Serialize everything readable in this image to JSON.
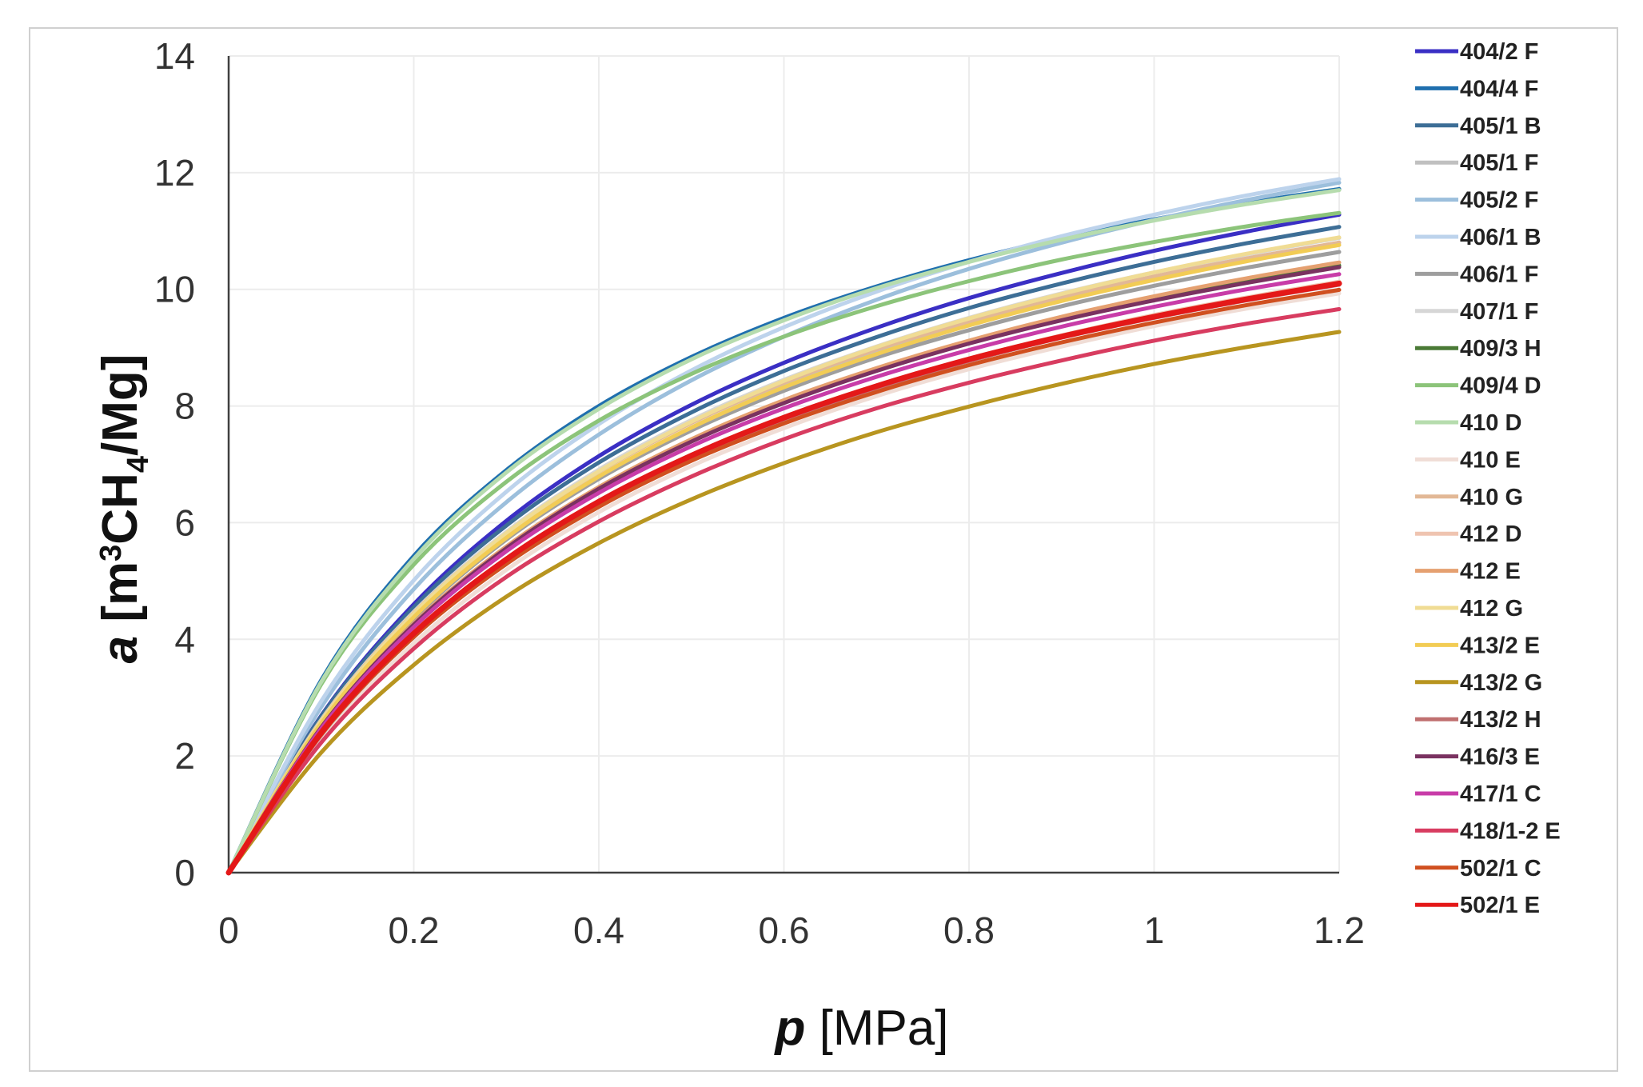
{
  "chart_data": {
    "type": "line",
    "title": "",
    "xlabel_italic": "p",
    "xlabel_rest": " [MPa]",
    "ylabel_italic": "a",
    "ylabel_pre": " [m",
    "ylabel_sup": "3",
    "ylabel_mid": "CH",
    "ylabel_sub": "4",
    "ylabel_post": "/Mg]",
    "xlim": [
      0,
      1.2
    ],
    "ylim": [
      0,
      14
    ],
    "xticks": [
      0,
      0.2,
      0.4,
      0.6,
      0.8,
      1,
      1.2
    ],
    "yticks": [
      0,
      2,
      4,
      6,
      8,
      10,
      12,
      14
    ],
    "grid": true,
    "legend_position": "right",
    "x": [
      0,
      0.1,
      0.2,
      0.3,
      0.4,
      0.5,
      0.6,
      0.7,
      0.8,
      0.9,
      1.0,
      1.1,
      1.2
    ],
    "series": [
      {
        "name": "404/2 F",
        "color": "#3a2fc4",
        "values": [
          0,
          2.69,
          4.6,
          6.03,
          7.14,
          8.02,
          8.74,
          9.34,
          9.85,
          10.28,
          10.66,
          10.99,
          11.28
        ]
      },
      {
        "name": "404/4 F",
        "color": "#1f6fae",
        "values": [
          0,
          3.3,
          5.43,
          6.9,
          8.0,
          8.84,
          9.51,
          10.05,
          10.5,
          10.88,
          11.2,
          11.48,
          11.72
        ]
      },
      {
        "name": "405/1 B",
        "color": "#3d6e96",
        "values": [
          0,
          2.68,
          4.55,
          5.95,
          7.03,
          7.89,
          8.6,
          9.18,
          9.68,
          10.1,
          10.47,
          10.79,
          11.07
        ]
      },
      {
        "name": "405/1 F",
        "color": "#c0c0c0",
        "values": [
          0,
          2.54,
          4.35,
          5.72,
          6.78,
          7.63,
          8.33,
          8.91,
          9.4,
          9.82,
          10.19,
          10.51,
          10.8
        ]
      },
      {
        "name": "405/2 F",
        "color": "#9cbfdc",
        "values": [
          0,
          2.84,
          4.86,
          6.35,
          7.51,
          8.44,
          9.19,
          9.82,
          10.35,
          10.8,
          11.19,
          11.53,
          11.83
        ]
      },
      {
        "name": "406/1 B",
        "color": "#bdd3ec",
        "values": [
          0,
          2.94,
          5.01,
          6.53,
          7.69,
          8.61,
          9.35,
          9.96,
          10.47,
          10.91,
          11.28,
          11.61,
          11.89
        ]
      },
      {
        "name": "406/1 F",
        "color": "#9e9e9e",
        "values": [
          0,
          2.55,
          4.36,
          5.71,
          6.75,
          7.58,
          8.26,
          8.83,
          9.3,
          9.71,
          10.06,
          10.37,
          10.64
        ]
      },
      {
        "name": "407/1 F",
        "color": "#d6d6d6",
        "values": [
          0,
          2.62,
          4.47,
          5.84,
          6.91,
          7.76,
          8.45,
          9.02,
          9.51,
          9.93,
          10.29,
          10.6,
          10.88
        ]
      },
      {
        "name": "409/3 H",
        "color": "#4a7a36",
        "values": [
          0,
          2.5,
          4.26,
          5.58,
          6.6,
          7.41,
          8.08,
          8.63,
          9.09,
          9.49,
          9.84,
          10.14,
          10.41
        ]
      },
      {
        "name": "409/4 D",
        "color": "#8cc47a",
        "values": [
          0,
          3.23,
          5.28,
          6.7,
          7.75,
          8.55,
          9.19,
          9.71,
          10.14,
          10.51,
          10.81,
          11.08,
          11.31
        ]
      },
      {
        "name": "410 D",
        "color": "#b6dcae",
        "values": [
          0,
          3.27,
          5.38,
          6.86,
          7.95,
          8.8,
          9.47,
          10.02,
          10.47,
          10.85,
          11.18,
          11.46,
          11.7
        ]
      },
      {
        "name": "410 E",
        "color": "#f0ddd6",
        "values": [
          0,
          2.28,
          3.93,
          5.19,
          6.18,
          6.97,
          7.62,
          8.17,
          8.63,
          9.02,
          9.37,
          9.67,
          9.93
        ]
      },
      {
        "name": "410 G",
        "color": "#e2b896",
        "values": [
          0,
          2.61,
          4.45,
          5.81,
          6.87,
          7.71,
          8.4,
          8.97,
          9.45,
          9.86,
          10.22,
          10.53,
          10.8
        ]
      },
      {
        "name": "412 D",
        "color": "#efc4b0",
        "values": [
          0,
          2.37,
          4.07,
          5.34,
          6.34,
          7.14,
          7.8,
          8.35,
          8.81,
          9.21,
          9.56,
          9.86,
          10.13
        ]
      },
      {
        "name": "412 E",
        "color": "#e5a070",
        "values": [
          0,
          2.5,
          4.27,
          5.59,
          6.61,
          7.43,
          8.1,
          8.65,
          9.12,
          9.53,
          9.88,
          10.19,
          10.46
        ]
      },
      {
        "name": "412 G",
        "color": "#f0dc94",
        "values": [
          0,
          2.6,
          4.44,
          5.82,
          6.88,
          7.73,
          8.43,
          9.01,
          9.5,
          9.92,
          10.29,
          10.61,
          10.89
        ]
      },
      {
        "name": "413/2 E",
        "color": "#f2cc55",
        "values": [
          0,
          2.56,
          4.38,
          5.74,
          6.79,
          7.63,
          8.32,
          8.89,
          9.38,
          9.8,
          10.16,
          10.48,
          10.76
        ]
      },
      {
        "name": "413/2 G",
        "color": "#b89520",
        "values": [
          0,
          2.06,
          3.56,
          4.73,
          5.65,
          6.4,
          7.02,
          7.55,
          7.99,
          8.38,
          8.72,
          9.01,
          9.27
        ]
      },
      {
        "name": "413/2 H",
        "color": "#c07070",
        "values": [
          0,
          2.36,
          4.04,
          5.31,
          6.3,
          7.1,
          7.76,
          8.3,
          8.77,
          9.17,
          9.51,
          9.81,
          10.08
        ]
      },
      {
        "name": "416/3 E",
        "color": "#7a3260",
        "values": [
          0,
          2.49,
          4.25,
          5.56,
          6.58,
          7.39,
          8.05,
          8.6,
          9.07,
          9.47,
          9.81,
          10.11,
          10.38
        ]
      },
      {
        "name": "417/1 C",
        "color": "#c83ca8",
        "values": [
          0,
          2.47,
          4.21,
          5.51,
          6.51,
          7.31,
          7.96,
          8.5,
          8.96,
          9.36,
          9.7,
          10.0,
          10.26
        ]
      },
      {
        "name": "418/1-2 E",
        "color": "#d83c60",
        "values": [
          0,
          2.23,
          3.84,
          5.07,
          6.02,
          6.79,
          7.43,
          7.96,
          8.4,
          8.78,
          9.12,
          9.41,
          9.66
        ]
      },
      {
        "name": "502/1 C",
        "color": "#d05020",
        "values": [
          0,
          2.37,
          4.04,
          5.29,
          6.27,
          7.06,
          7.7,
          8.24,
          8.7,
          9.09,
          9.43,
          9.73,
          9.99
        ]
      },
      {
        "name": "502/1 E",
        "color": "#e41818",
        "values": [
          0,
          2.4,
          4.1,
          5.37,
          6.36,
          7.15,
          7.8,
          8.34,
          8.8,
          9.19,
          9.53,
          9.83,
          10.1
        ]
      }
    ]
  }
}
